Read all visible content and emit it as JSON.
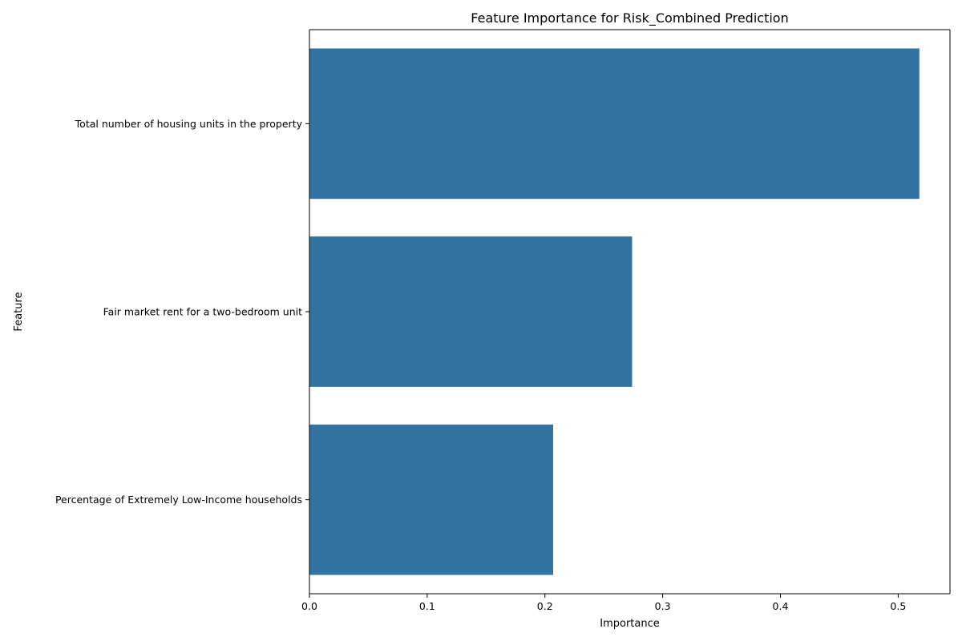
{
  "chart_data": {
    "type": "bar",
    "orientation": "horizontal",
    "title": "Feature Importance for Risk_Combined Prediction",
    "xlabel": "Importance",
    "ylabel": "Feature",
    "categories": [
      "Total number of housing units in the property",
      "Fair market rent for a two-bedroom unit",
      "Percentage of Extremely Low-Income households"
    ],
    "values": [
      0.518,
      0.274,
      0.207
    ],
    "xlim": [
      0,
      0.544
    ],
    "xticks": [
      0.0,
      0.1,
      0.2,
      0.3,
      0.4,
      0.5
    ],
    "xtick_labels": [
      "0.0",
      "0.1",
      "0.2",
      "0.3",
      "0.4",
      "0.5"
    ],
    "bar_color": "#3274a1",
    "grid": false,
    "legend": "none"
  }
}
